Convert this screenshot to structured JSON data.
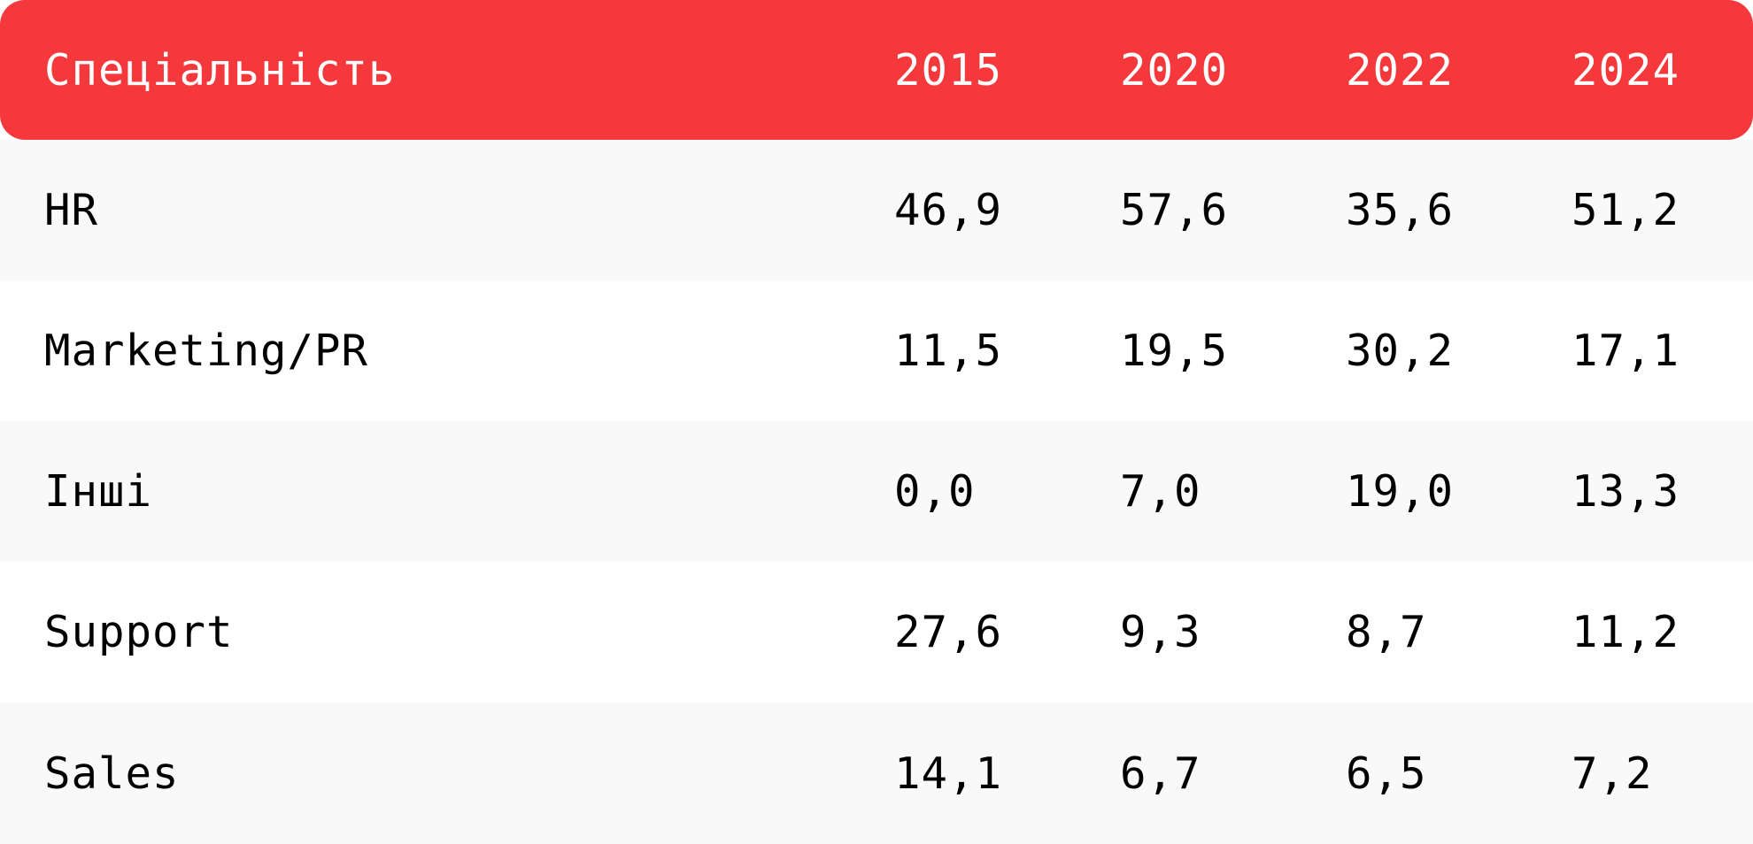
{
  "chart_data": {
    "type": "table",
    "columns": [
      "Спеціальність",
      "2015",
      "2020",
      "2022",
      "2024"
    ],
    "rows": [
      {
        "label": "HR",
        "values": [
          "46,9",
          "57,6",
          "35,6",
          "51,2"
        ]
      },
      {
        "label": "Marketing/PR",
        "values": [
          "11,5",
          "19,5",
          "30,2",
          "17,1"
        ]
      },
      {
        "label": "Інші",
        "values": [
          "0,0",
          "7,0",
          "19,0",
          "13,3"
        ]
      },
      {
        "label": "Support",
        "values": [
          "27,6",
          "9,3",
          "8,7",
          "11,2"
        ]
      },
      {
        "label": "Sales",
        "values": [
          "14,1",
          "6,7",
          "6,5",
          "7,2"
        ]
      }
    ]
  },
  "colors": {
    "header_background": "#F4383C",
    "header_text": "#FFFFFF",
    "row_shaded": "#F9F9F9",
    "row_plain": "#FFFFFF",
    "body_text": "#000000"
  }
}
